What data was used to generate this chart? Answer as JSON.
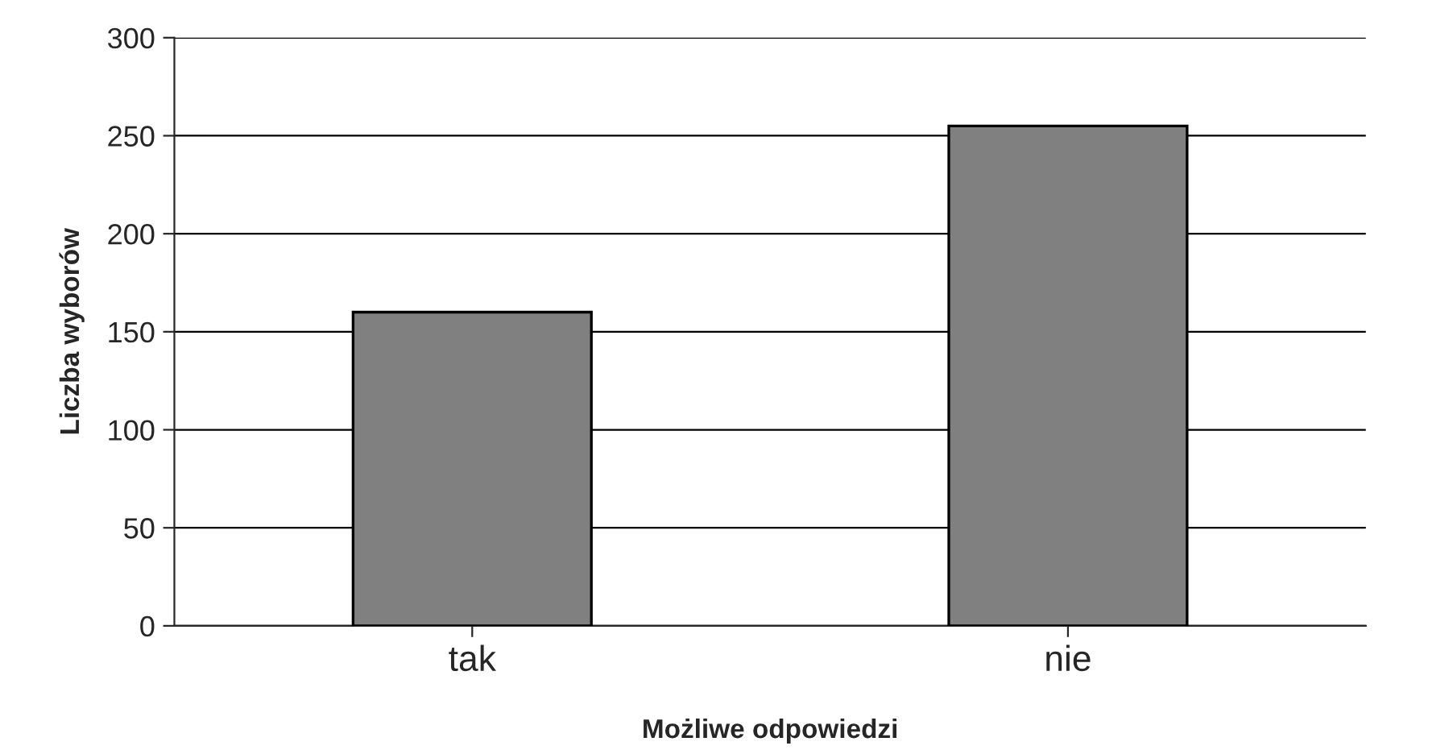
{
  "chart_data": {
    "type": "bar",
    "xlabel": "Możliwe odpowiedzi",
    "ylabel": "Liczba wyborów",
    "categories": [
      "tak",
      "nie"
    ],
    "values": [
      160,
      255
    ],
    "color": "#808080",
    "ylim": [
      0,
      300
    ],
    "yticks": [
      0,
      50,
      100,
      150,
      200,
      250,
      300
    ],
    "grid": "y"
  }
}
